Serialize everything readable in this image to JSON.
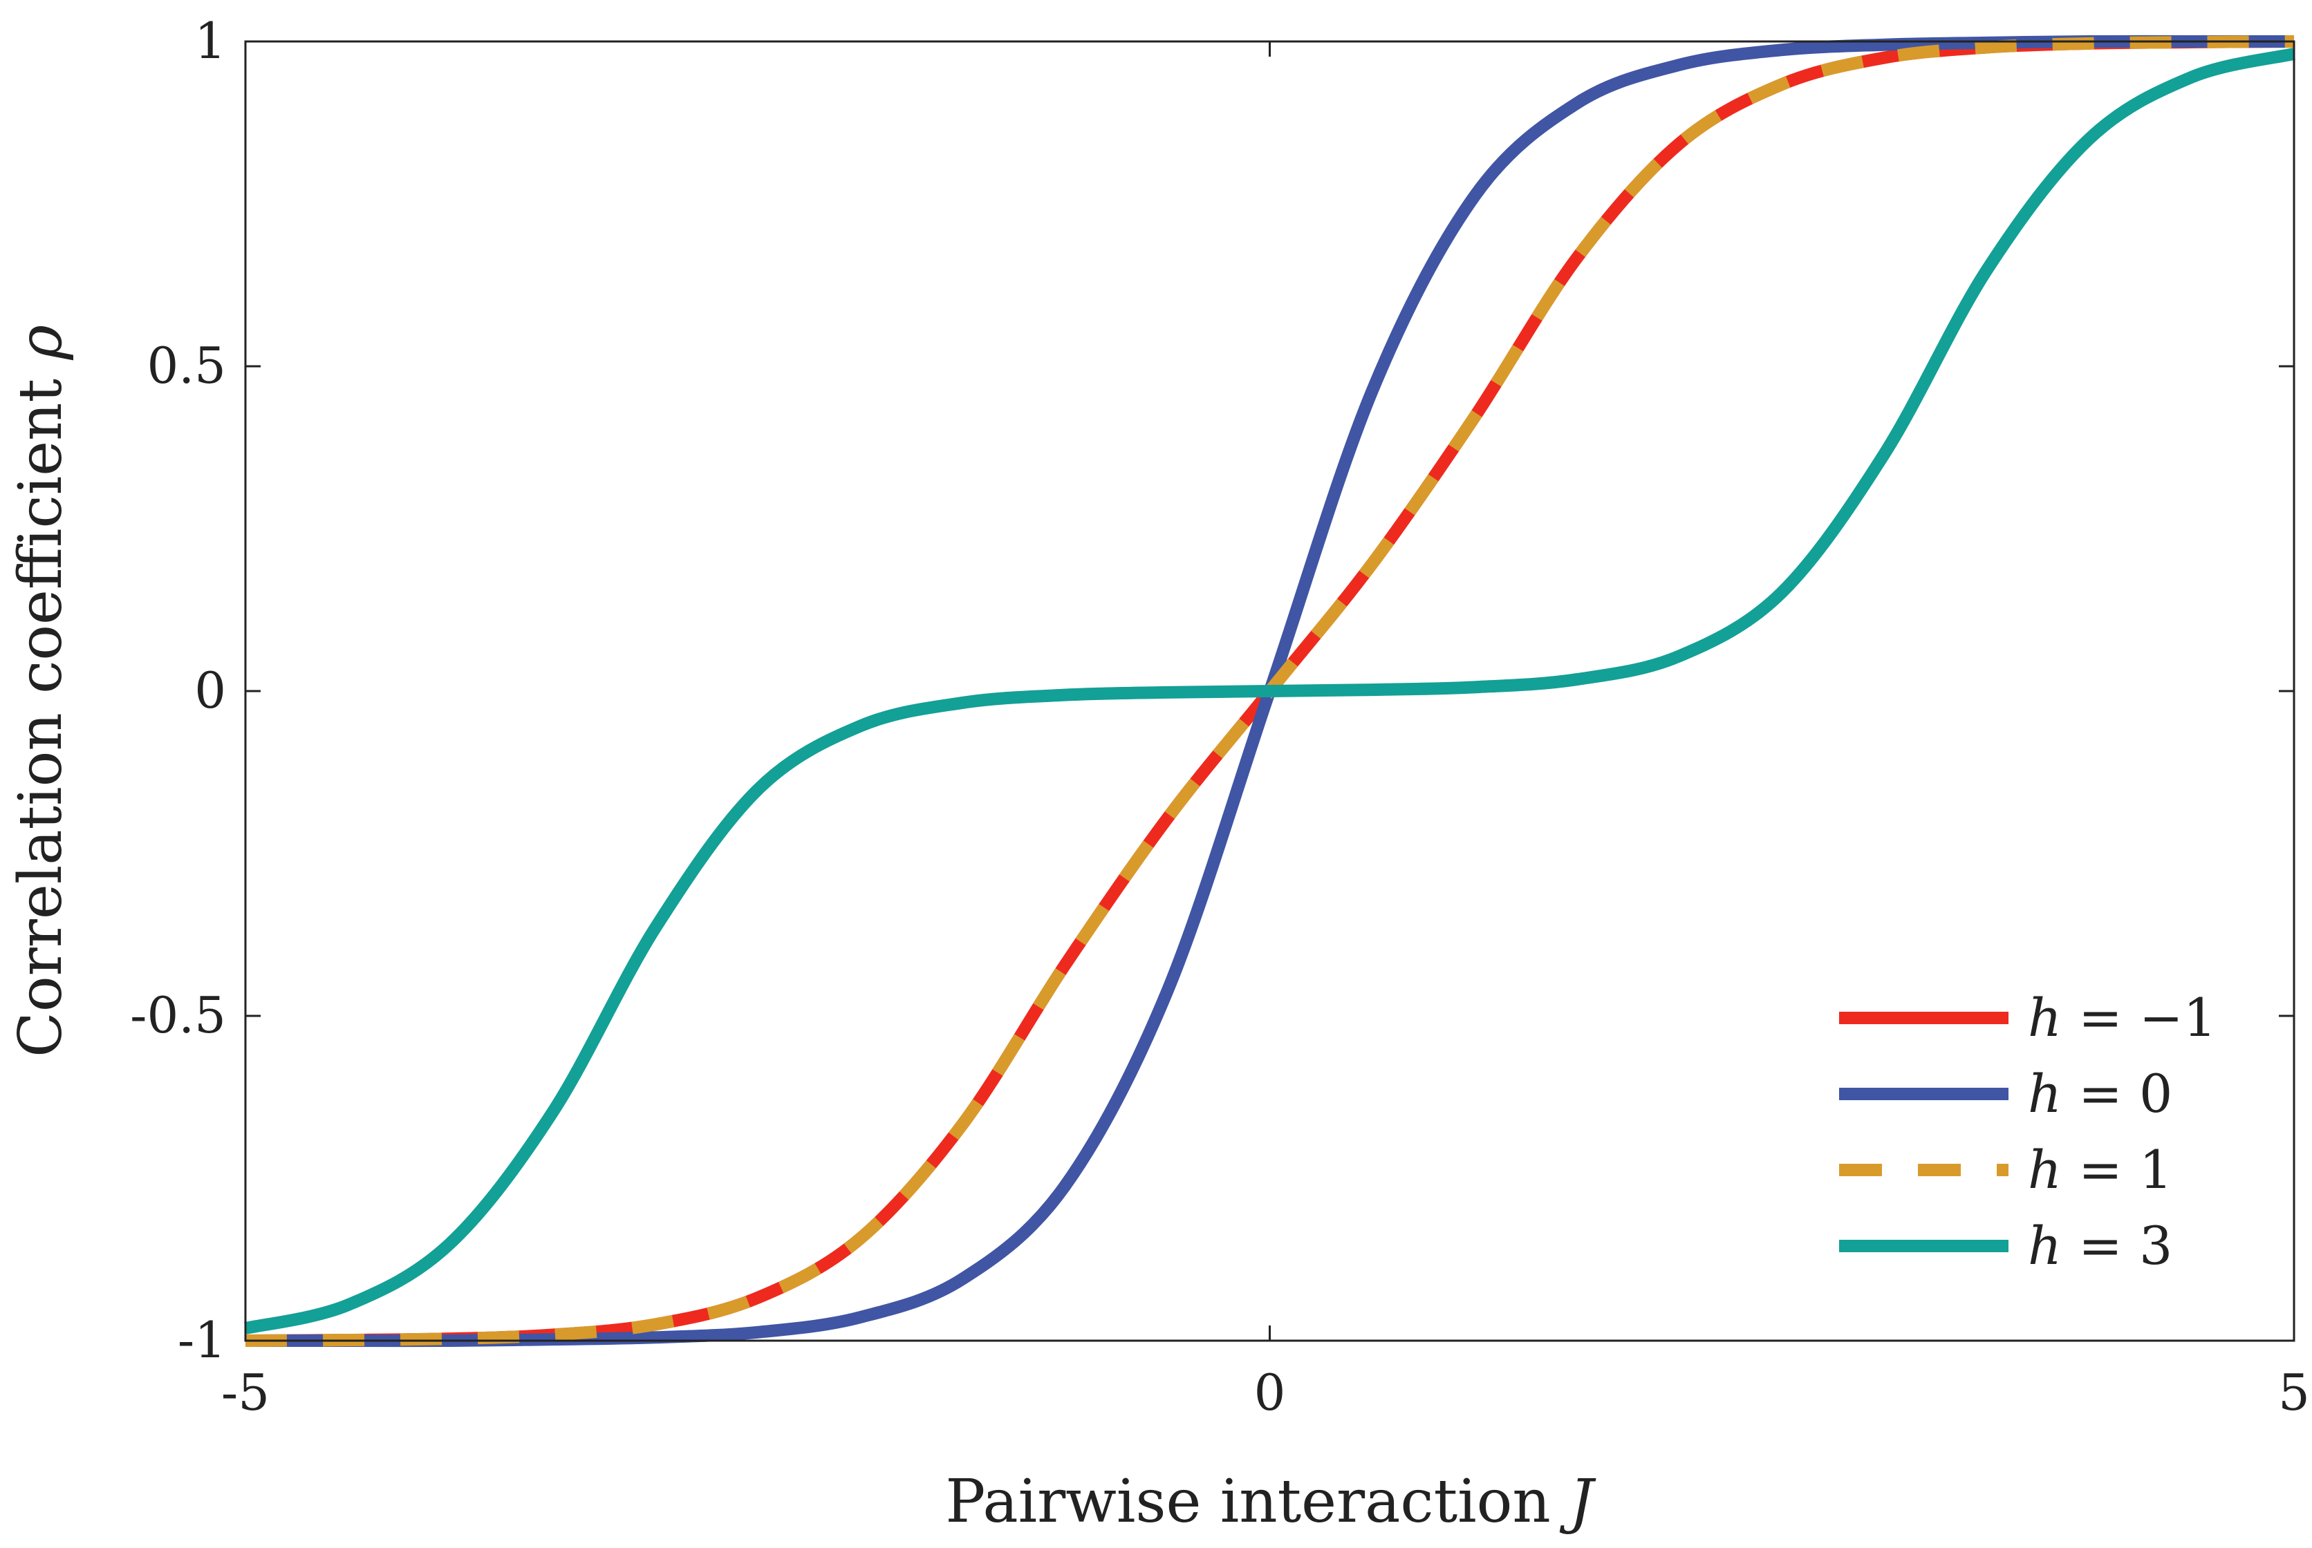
{
  "chart_data": {
    "type": "line",
    "title": "",
    "xlabel": {
      "text": "Pairwise interaction ",
      "symbol": "J"
    },
    "ylabel": {
      "text": "Correlation coefficient ",
      "symbol": "ρ"
    },
    "xlim": [
      -5,
      5
    ],
    "ylim": [
      -1,
      1
    ],
    "xticks": [
      {
        "value": -5,
        "label": "-5"
      },
      {
        "value": 0,
        "label": "0"
      },
      {
        "value": 5,
        "label": "5"
      }
    ],
    "yticks": [
      {
        "value": -1,
        "label": "-1"
      },
      {
        "value": -0.5,
        "label": "-0.5"
      },
      {
        "value": 0,
        "label": "0"
      },
      {
        "value": 0.5,
        "label": "0.5"
      },
      {
        "value": 1,
        "label": "1"
      }
    ],
    "grid": false,
    "legend_position": "bottom-right",
    "x": [
      -5,
      -4.5,
      -4,
      -3.5,
      -3,
      -2.5,
      -2,
      -1.5,
      -1,
      -0.5,
      0,
      0.5,
      1,
      1.5,
      2,
      2.5,
      3,
      3.5,
      4,
      4.5,
      5
    ],
    "series": [
      {
        "name": "h = −1",
        "name_symbol": "h",
        "name_rest": " = −1",
        "color": "#ee2a1f",
        "dash": "solid",
        "values": [
          -1.0,
          -0.999,
          -0.997,
          -0.991,
          -0.975,
          -0.934,
          -0.843,
          -0.667,
          -0.422,
          -0.196,
          0.0,
          0.196,
          0.422,
          0.667,
          0.843,
          0.934,
          0.975,
          0.991,
          0.997,
          0.999,
          1.0
        ]
      },
      {
        "name": "h = 0",
        "name_symbol": "h",
        "name_rest": " = 0",
        "color": "#4055a4",
        "dash": "solid",
        "values": [
          -1.0,
          -1.0,
          -1.0,
          -0.998,
          -0.995,
          -0.987,
          -0.964,
          -0.905,
          -0.762,
          -0.462,
          0.0,
          0.462,
          0.762,
          0.905,
          0.964,
          0.987,
          0.995,
          0.998,
          1.0,
          1.0,
          1.0
        ]
      },
      {
        "name": "h = 1",
        "name_symbol": "h",
        "name_rest": " = 1",
        "color": "#d89b2b",
        "dash": "dashed",
        "values": [
          -1.0,
          -0.999,
          -0.997,
          -0.991,
          -0.975,
          -0.934,
          -0.843,
          -0.667,
          -0.422,
          -0.196,
          0.0,
          0.196,
          0.422,
          0.667,
          0.843,
          0.934,
          0.975,
          0.991,
          0.997,
          0.999,
          1.0
        ]
      },
      {
        "name": "h = 3",
        "name_symbol": "h",
        "name_rest": " = 3",
        "color": "#13a096",
        "dash": "solid",
        "values": [
          -0.981,
          -0.945,
          -0.85,
          -0.648,
          -0.365,
          -0.152,
          -0.054,
          -0.018,
          -0.006,
          -0.002,
          0.0,
          0.002,
          0.006,
          0.018,
          0.054,
          0.152,
          0.365,
          0.648,
          0.85,
          0.945,
          0.981
        ]
      }
    ]
  }
}
